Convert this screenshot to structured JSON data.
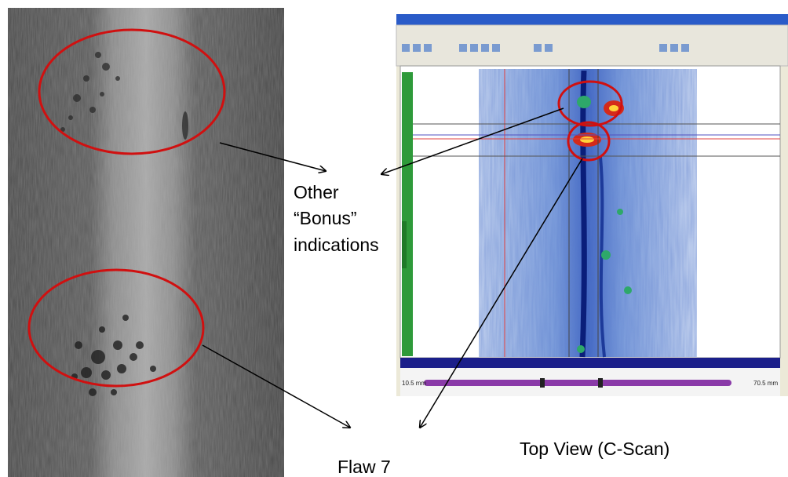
{
  "labels": {
    "other_indications": [
      "Other",
      "“Bonus”",
      "indications"
    ],
    "flaw": "Flaw 7",
    "top_view": "Top View (C-Scan)"
  },
  "screenshot": {
    "scale_left": "10.5 mm",
    "scale_right": "70.5 mm"
  }
}
